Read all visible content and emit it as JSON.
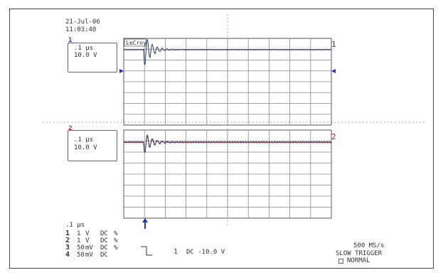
{
  "header": {
    "date": "21-Jul-06",
    "time": "11:03:40"
  },
  "brand": "LeCroy",
  "channel1": {
    "number": "1",
    "timebase": ".1 µs",
    "volts_div": "10.0 V",
    "color": "#2233cc"
  },
  "channel2": {
    "number": "2",
    "timebase": ".1 µs",
    "volts_div": "10.0 V",
    "color": "#cc2222"
  },
  "bottom": {
    "timebase": ".1 µs",
    "ch_rows": [
      {
        "num": "1",
        "value": "1",
        "unit": "V",
        "coupling": "DC",
        "suffix": "%"
      },
      {
        "num": "2",
        "value": "1",
        "unit": "V",
        "coupling": "DC",
        "suffix": "%"
      },
      {
        "num": "3",
        "value": "50",
        "unit": "mV",
        "coupling": "DC",
        "suffix": "%"
      },
      {
        "num": "4",
        "value": "50",
        "unit": "mV",
        "coupling": "DC",
        "suffix": ""
      }
    ],
    "trigger_channel": "1",
    "trigger_info": "DC -10.0 V",
    "sample_rate": "500 MS/s",
    "trigger_mode": "SLOW TRIGGER",
    "acq_mode": "NORMAL"
  }
}
